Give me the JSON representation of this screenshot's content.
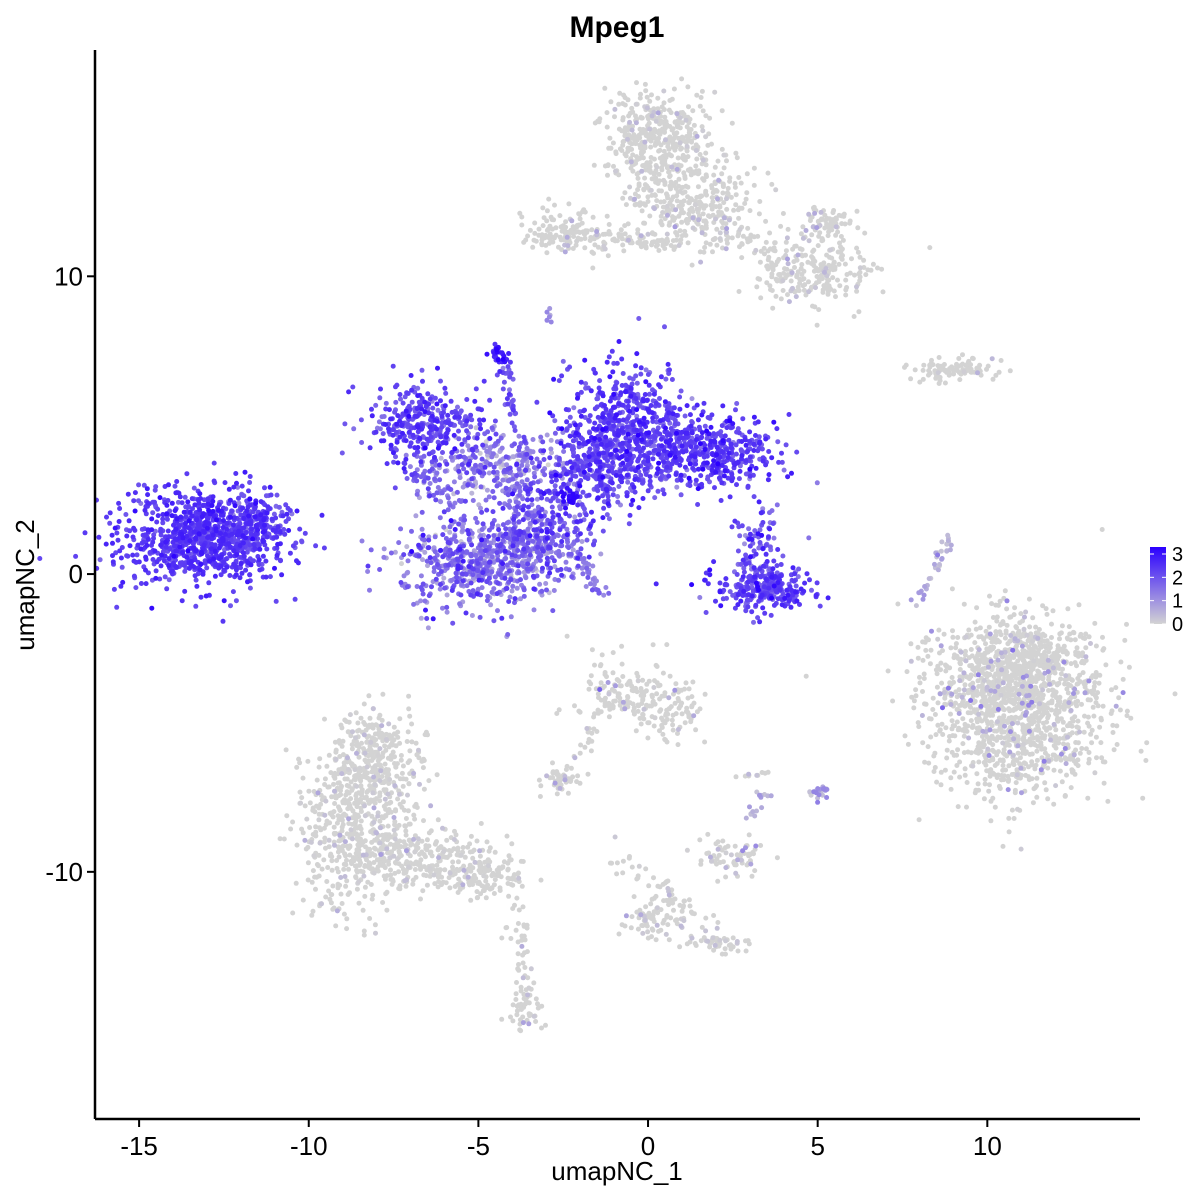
{
  "chart_data": {
    "type": "scatter",
    "title": "Mpeg1",
    "xlabel": "umapNC_1",
    "ylabel": "umapNC_2",
    "xlim": [
      -16.3,
      14.5
    ],
    "ylim": [
      -18.3,
      17.6
    ],
    "x_ticks": [
      -15,
      -10,
      -5,
      0,
      5,
      10
    ],
    "x_tick_labels": [
      "-15",
      "-10",
      "-5",
      "0",
      "5",
      "10"
    ],
    "y_ticks": [
      -10,
      0,
      10
    ],
    "y_tick_labels": [
      "-10",
      "0",
      "10"
    ],
    "grid": false,
    "point_size": 2.5,
    "color_scale": {
      "low": "#d3d3d3",
      "high": "#2b00ff",
      "min": 0,
      "max": 3.3,
      "legend_ticks": [
        0,
        1,
        2,
        3
      ],
      "legend_tick_labels": [
        "0",
        "1",
        "2",
        "3"
      ],
      "legend_position": "right"
    },
    "clusters": [
      {
        "cx": -13.1,
        "cy": 1.2,
        "sx": 1.2,
        "sy": 0.8,
        "n": 900,
        "expr": 2.4,
        "expr_sd": 0.3
      },
      {
        "cx": -11.6,
        "cy": 1.6,
        "sx": 0.5,
        "sy": 0.5,
        "n": 140,
        "expr": 2.1,
        "expr_sd": 0.4
      },
      {
        "cx": -6.5,
        "cy": 5.0,
        "sx": 0.9,
        "sy": 0.7,
        "n": 350,
        "expr": 2.2,
        "expr_sd": 0.4
      },
      {
        "cx": -4.6,
        "cy": 3.6,
        "sx": 1.0,
        "sy": 0.6,
        "n": 250,
        "expr": 1.2,
        "expr_sd": 0.6
      },
      {
        "cx": -4.9,
        "cy": 0.4,
        "sx": 1.2,
        "sy": 0.8,
        "n": 650,
        "expr": 1.5,
        "expr_sd": 0.6
      },
      {
        "cx": -3.0,
        "cy": 1.6,
        "sx": 0.7,
        "sy": 0.8,
        "n": 250,
        "expr": 1.9,
        "expr_sd": 0.5
      },
      {
        "cx": -1.5,
        "cy": 3.5,
        "sx": 0.9,
        "sy": 0.7,
        "n": 320,
        "expr": 2.1,
        "expr_sd": 0.4
      },
      {
        "cx": -0.6,
        "cy": 5.0,
        "sx": 0.9,
        "sy": 1.0,
        "n": 500,
        "expr": 2.3,
        "expr_sd": 0.4
      },
      {
        "cx": 1.8,
        "cy": 4.1,
        "sx": 1.0,
        "sy": 0.6,
        "n": 450,
        "expr": 2.3,
        "expr_sd": 0.4
      },
      {
        "cx": 3.4,
        "cy": -0.5,
        "sx": 0.7,
        "sy": 0.4,
        "n": 260,
        "expr": 2.2,
        "expr_sd": 0.4
      },
      {
        "cx": 3.2,
        "cy": 0.8,
        "sx": 0.3,
        "sy": 0.7,
        "n": 90,
        "expr": 2.0,
        "expr_sd": 0.5
      },
      {
        "cx": -4.4,
        "cy": 7.4,
        "sx": 0.15,
        "sy": 0.2,
        "n": 30,
        "expr": 2.8,
        "expr_sd": 0.3
      },
      {
        "cx": -2.3,
        "cy": 2.6,
        "sx": 0.15,
        "sy": 0.15,
        "n": 20,
        "expr": 3.2,
        "expr_sd": 0.1
      },
      {
        "cx": 0.2,
        "cy": 14.6,
        "sx": 0.7,
        "sy": 0.8,
        "n": 400,
        "expr": 0.05,
        "expr_sd": 0.3
      },
      {
        "cx": 1.4,
        "cy": 12.5,
        "sx": 0.9,
        "sy": 0.8,
        "n": 300,
        "expr": 0.05,
        "expr_sd": 0.3
      },
      {
        "cx": 4.9,
        "cy": 10.2,
        "sx": 0.9,
        "sy": 0.6,
        "n": 220,
        "expr": 0.08,
        "expr_sd": 0.35
      },
      {
        "cx": 5.3,
        "cy": 11.8,
        "sx": 0.4,
        "sy": 0.3,
        "n": 70,
        "expr": 0.1,
        "expr_sd": 0.4
      },
      {
        "cx": -2.4,
        "cy": 11.6,
        "sx": 0.8,
        "sy": 0.4,
        "n": 90,
        "expr": 0.15,
        "expr_sd": 0.5
      },
      {
        "cx": -0.4,
        "cy": 11.2,
        "sx": 1.3,
        "sy": 0.2,
        "n": 60,
        "expr": 0.05,
        "expr_sd": 0.3
      },
      {
        "cx": 9.0,
        "cy": 6.9,
        "sx": 0.6,
        "sy": 0.2,
        "n": 60,
        "expr": 0.05,
        "expr_sd": 0.3
      },
      {
        "cx": 10.9,
        "cy": -4.5,
        "sx": 1.3,
        "sy": 1.4,
        "n": 1300,
        "expr": 0.2,
        "expr_sd": 0.6
      },
      {
        "cx": 10.9,
        "cy": -2.8,
        "sx": 1.0,
        "sy": 0.6,
        "n": 300,
        "expr": 0.1,
        "expr_sd": 0.4
      },
      {
        "cx": -8.6,
        "cy": -8.3,
        "sx": 0.8,
        "sy": 1.5,
        "n": 600,
        "expr": 0.05,
        "expr_sd": 0.3
      },
      {
        "cx": -8.0,
        "cy": -6.2,
        "sx": 0.6,
        "sy": 0.8,
        "n": 220,
        "expr": 0.05,
        "expr_sd": 0.3
      },
      {
        "cx": -6.5,
        "cy": -9.5,
        "sx": 1.0,
        "sy": 0.5,
        "n": 220,
        "expr": 0.08,
        "expr_sd": 0.35
      },
      {
        "cx": -4.7,
        "cy": -10.1,
        "sx": 0.6,
        "sy": 0.3,
        "n": 80,
        "expr": 0.05,
        "expr_sd": 0.3
      },
      {
        "cx": -3.6,
        "cy": -14.6,
        "sx": 0.25,
        "sy": 0.4,
        "n": 45,
        "expr": 0.25,
        "expr_sd": 0.5
      },
      {
        "cx": -0.5,
        "cy": -4.0,
        "sx": 0.8,
        "sy": 0.6,
        "n": 150,
        "expr": 0.3,
        "expr_sd": 0.6
      },
      {
        "cx": 0.9,
        "cy": -4.8,
        "sx": 0.4,
        "sy": 0.4,
        "n": 60,
        "expr": 0.15,
        "expr_sd": 0.4
      },
      {
        "cx": -2.6,
        "cy": -6.9,
        "sx": 0.3,
        "sy": 0.2,
        "n": 40,
        "expr": 0.3,
        "expr_sd": 0.6
      },
      {
        "cx": 2.4,
        "cy": -9.5,
        "sx": 0.5,
        "sy": 0.3,
        "n": 70,
        "expr": 0.4,
        "expr_sd": 0.6
      },
      {
        "cx": 0.0,
        "cy": -11.6,
        "sx": 0.4,
        "sy": 0.3,
        "n": 60,
        "expr": 0.05,
        "expr_sd": 0.3
      },
      {
        "cx": 2.0,
        "cy": -12.4,
        "sx": 0.5,
        "sy": 0.15,
        "n": 40,
        "expr": 0.05,
        "expr_sd": 0.3
      },
      {
        "cx": 5.0,
        "cy": -7.3,
        "sx": 0.15,
        "sy": 0.15,
        "n": 20,
        "expr": 0.8,
        "expr_sd": 0.5
      }
    ],
    "trails": [
      {
        "from": [
          -4.4,
          7.2
        ],
        "to": [
          -3.5,
          3.6
        ],
        "n": 40,
        "jitter": 0.1,
        "expr": 2.0
      },
      {
        "from": [
          -2.6,
          1.5
        ],
        "to": [
          -1.3,
          -0.7
        ],
        "n": 40,
        "jitter": 0.1,
        "expr": 1.4
      },
      {
        "from": [
          -4.4,
          3.6
        ],
        "to": [
          -3.4,
          0.4
        ],
        "n": 50,
        "jitter": 0.3,
        "expr": 1.6
      },
      {
        "from": [
          -7.0,
          3.6
        ],
        "to": [
          -5.5,
          2.4
        ],
        "n": 40,
        "jitter": 0.2,
        "expr": 1.8
      },
      {
        "from": [
          -3.2,
          11.4
        ],
        "to": [
          1.0,
          11.0
        ],
        "n": 60,
        "jitter": 0.2,
        "expr": 0.05
      },
      {
        "from": [
          1.2,
          12.5
        ],
        "to": [
          3.8,
          10.4
        ],
        "n": 50,
        "jitter": 0.3,
        "expr": 0.05
      },
      {
        "from": [
          8.9,
          1.2
        ],
        "to": [
          7.9,
          -1.0
        ],
        "n": 35,
        "jitter": 0.1,
        "expr": 0.5
      },
      {
        "from": [
          8.2,
          -2.0
        ],
        "to": [
          8.2,
          -3.0
        ],
        "n": 6,
        "jitter": 0.05,
        "expr": 0.3
      },
      {
        "from": [
          -6.5,
          -9.8
        ],
        "to": [
          -3.9,
          -11.0
        ],
        "n": 40,
        "jitter": 0.4,
        "expr": 0.05
      },
      {
        "from": [
          -3.9,
          -11.0
        ],
        "to": [
          -3.6,
          -14.4
        ],
        "n": 40,
        "jitter": 0.15,
        "expr": 0.1
      },
      {
        "from": [
          -1.0,
          -4.1
        ],
        "to": [
          -2.5,
          -6.8
        ],
        "n": 30,
        "jitter": 0.15,
        "expr": 0.2
      },
      {
        "from": [
          -0.9,
          -9.5
        ],
        "to": [
          2.5,
          -12.5
        ],
        "n": 70,
        "jitter": 0.3,
        "expr": 0.05
      },
      {
        "from": [
          3.0,
          -8.3
        ],
        "to": [
          3.5,
          -7.3
        ],
        "n": 15,
        "jitter": 0.1,
        "expr": 0.5
      },
      {
        "from": [
          8.2,
          6.8
        ],
        "to": [
          9.8,
          6.9
        ],
        "n": 30,
        "jitter": 0.2,
        "expr": 0.05
      },
      {
        "from": [
          -2.9,
          8.9
        ],
        "to": [
          -2.9,
          8.5
        ],
        "n": 6,
        "jitter": 0.05,
        "expr": 1.0
      },
      {
        "from": [
          2.5,
          -6.8
        ],
        "to": [
          3.6,
          -6.7
        ],
        "n": 10,
        "jitter": 0.05,
        "expr": 0.05
      }
    ]
  }
}
